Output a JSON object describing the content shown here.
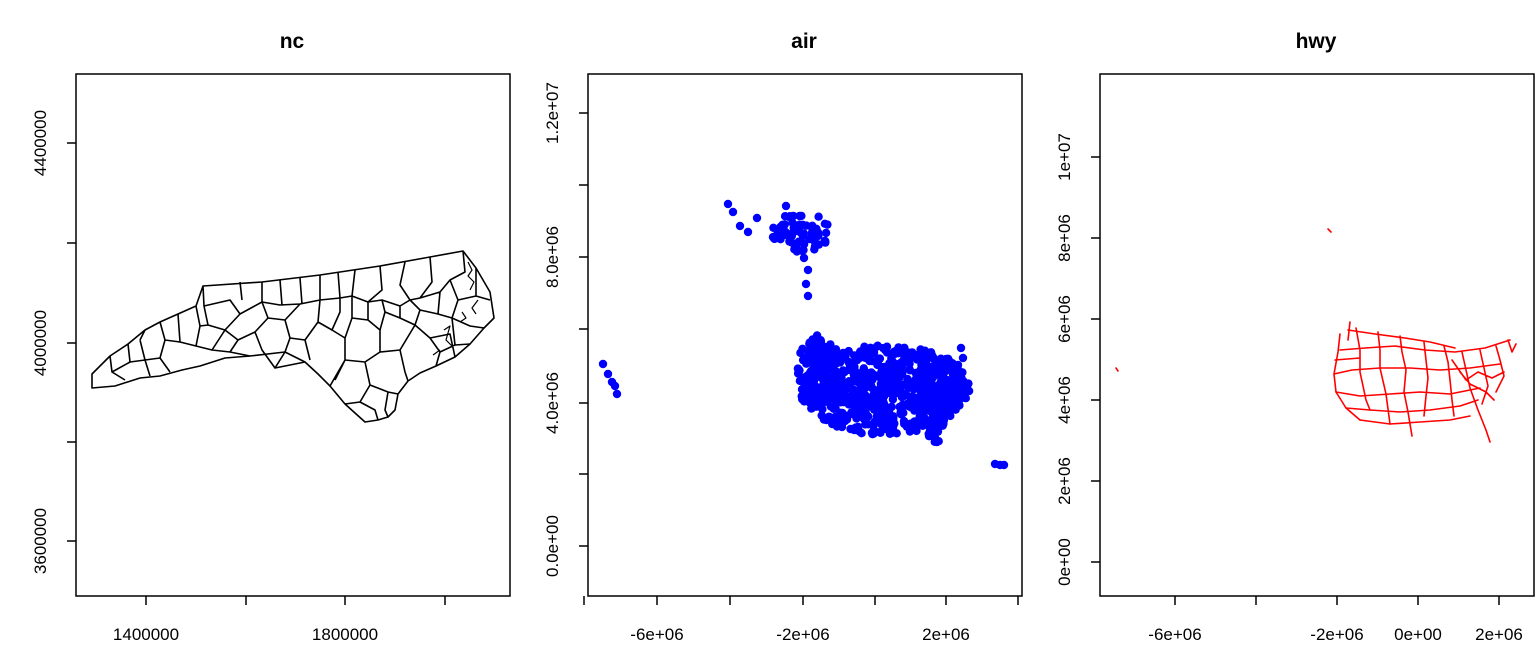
{
  "panels": [
    {
      "title": "nc",
      "x_ticks": [
        "1400000",
        "",
        "1800000",
        ""
      ],
      "y_ticks": [
        "3600000",
        "",
        "4000000",
        "",
        "4400000"
      ],
      "layer_color": "#000000",
      "geometry": "polygons",
      "xlim": [
        1260000,
        2130000
      ],
      "ylim": [
        3490000,
        4535000
      ]
    },
    {
      "title": "air",
      "x_ticks": [
        "",
        "-6e+06",
        "",
        "-2e+06",
        "",
        "2e+06",
        ""
      ],
      "y_ticks": [
        "0.0e+00",
        "",
        "4.0e+06",
        "",
        "8.0e+06",
        "",
        "1.2e+07"
      ],
      "layer_color": "#0000ff",
      "geometry": "points",
      "xlim": [
        -8000000,
        4000000
      ],
      "ylim": [
        -1200000,
        13000000
      ]
    },
    {
      "title": "hwy",
      "x_ticks": [
        "-6e+06",
        "",
        "-2e+06",
        "0e+00",
        "2e+06"
      ],
      "y_ticks": [
        "0e+00",
        "2e+06",
        "4e+06",
        "6e+06",
        "8e+06",
        "1e+07"
      ],
      "layer_color": "#ff0000",
      "geometry": "lines",
      "xlim": [
        -8000000,
        2650000
      ],
      "ylim": [
        -600000,
        12200000
      ]
    }
  ]
}
